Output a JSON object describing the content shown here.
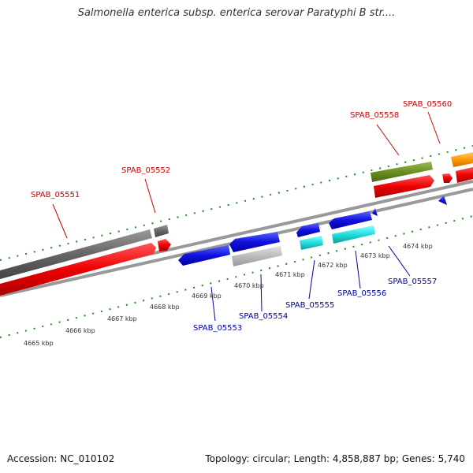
{
  "title": "Salmonella enterica subsp. enterica serovar Paratyphi B str....",
  "footer": {
    "accession": "Accession: NC_010102",
    "summary": "Topology: circular; Length: 4,858,887 bp; Genes: 5,740"
  },
  "scale_ticks": [
    {
      "label": "4665 kbp",
      "pos_kbp": 4665
    },
    {
      "label": "4666 kbp",
      "pos_kbp": 4666
    },
    {
      "label": "4667 kbp",
      "pos_kbp": 4667
    },
    {
      "label": "4668 kbp",
      "pos_kbp": 4668
    },
    {
      "label": "4669 kbp",
      "pos_kbp": 4669
    },
    {
      "label": "4670 kbp",
      "pos_kbp": 4670
    },
    {
      "label": "4671 kbp",
      "pos_kbp": 4671
    },
    {
      "label": "4672 kbp",
      "pos_kbp": 4672
    },
    {
      "label": "4673 kbp",
      "pos_kbp": 4673
    },
    {
      "label": "4674 kbp",
      "pos_kbp": 4674
    }
  ],
  "gene_labels_forward": [
    "SPAB_05551",
    "SPAB_05552",
    "SPAB_05558",
    "SPAB_05560"
  ],
  "gene_labels_reverse": [
    "SPAB_05553",
    "SPAB_05554",
    "SPAB_05555",
    "SPAB_05556",
    "SPAB_05557"
  ],
  "colors": {
    "forward_label": "#cc0000",
    "reverse_label": "#0000aa",
    "tick": "#228822",
    "backbone": "#888888",
    "red": "#ee0000",
    "blue": "#1111dd",
    "gray": "#666666",
    "light_gray": "#bbbbbb",
    "cyan": "#22dddd",
    "olive": "#6b8e23",
    "orange": "#ff9900"
  }
}
